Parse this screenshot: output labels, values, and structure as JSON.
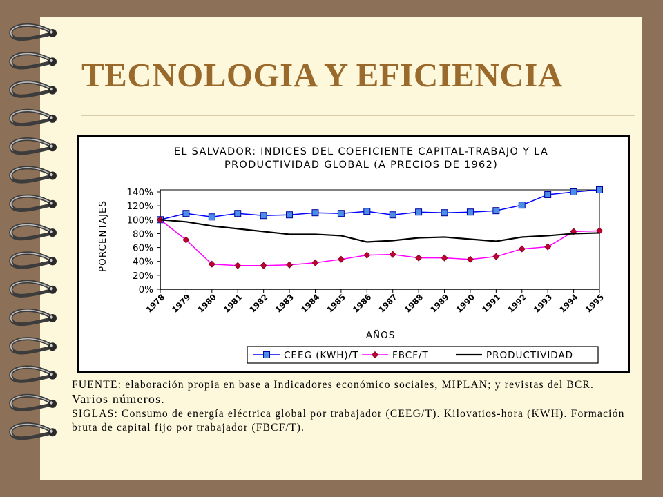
{
  "title": "TECNOLOGIA Y EFICIENCIA",
  "notes": {
    "fuente_line1": "FUENTE: elaboración propia en base a Indicadores económico sociales, MIPLAN; y revistas del BCR.",
    "fuente_line2": "Varios números.",
    "siglas": "SIGLAS: Consumo de energía eléctrica global por trabajador (CEEG/T). Kilovatios-hora (KWH). Formación bruta de capital fijo por trabajador (FBCF/T)."
  },
  "colors": {
    "background_border": "#8c7158",
    "page": "#fdf8dc",
    "title": "#9a6a2c",
    "ceeg": "#0000ff",
    "ceeg_marker": "#4a8ee8",
    "fbcf": "#ff00ff",
    "fbcf_marker": "#c00030",
    "productividad": "#000000"
  },
  "chart_data": {
    "type": "line",
    "title_line1": "EL SALVADOR: INDICES DEL COEFICIENTE CAPITAL-TRABAJO Y LA",
    "title_line2": "PRODUCTIVIDAD GLOBAL (A PRECIOS DE 1962)",
    "xlabel": "AÑOS",
    "ylabel": "PORCENTAJES",
    "ylim": [
      0,
      140
    ],
    "yticks": [
      "140%",
      "120%",
      "100%",
      "80%",
      "60%",
      "40%",
      "20%",
      "0%"
    ],
    "ytick_values": [
      140,
      120,
      100,
      80,
      60,
      40,
      20,
      0
    ],
    "categories": [
      "1978",
      "1979",
      "1980",
      "1981",
      "1982",
      "1983",
      "1984",
      "1985",
      "1986",
      "1987",
      "1988",
      "1989",
      "1990",
      "1991",
      "1992",
      "1993",
      "1994",
      "1995"
    ],
    "legend_position": "bottom",
    "grid": false,
    "series": [
      {
        "name": "CEEG (KWH)/T",
        "marker": "square",
        "values": [
          100,
          109,
          104,
          109,
          106,
          107,
          110,
          109,
          112,
          107,
          111,
          110,
          111,
          113,
          121,
          136,
          140,
          143
        ]
      },
      {
        "name": "FBCF/T",
        "marker": "diamond",
        "values": [
          100,
          71,
          36,
          34,
          34,
          35,
          38,
          43,
          49,
          50,
          45,
          45,
          43,
          47,
          58,
          61,
          83,
          84
        ]
      },
      {
        "name": "PRODUCTIVIDAD",
        "marker": "none",
        "values": [
          100,
          97,
          91,
          87,
          83,
          79,
          79,
          77,
          68,
          70,
          74,
          75,
          72,
          69,
          75,
          77,
          80,
          81
        ]
      }
    ]
  }
}
